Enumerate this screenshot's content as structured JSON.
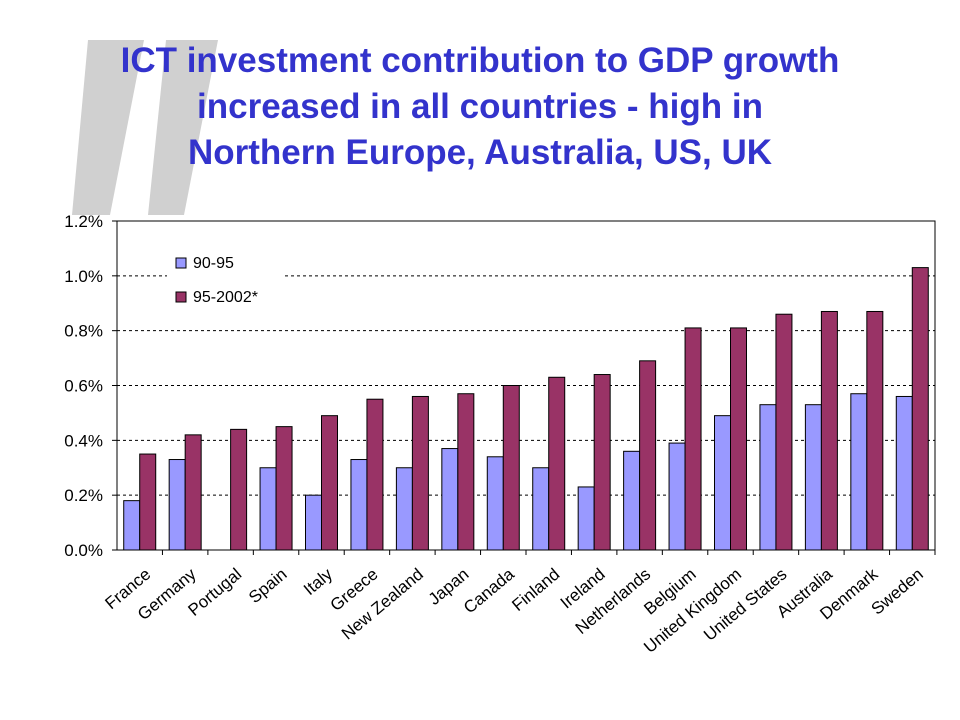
{
  "slide": {
    "title_lines": [
      "ICT investment contribution to GDP growth",
      "increased in all countries - high in",
      "Northern Europe, Australia, US, UK"
    ]
  },
  "colors": {
    "title": "#3333cc",
    "series_90_95": "#9999ff",
    "series_95_2002": "#993366",
    "quote_mark": "#d0d0d0"
  },
  "chart_data": {
    "type": "bar",
    "categories": [
      "France",
      "Germany",
      "Portugal",
      "Spain",
      "Italy",
      "Greece",
      "New Zealand",
      "Japan",
      "Canada",
      "Finland",
      "Ireland",
      "Netherlands",
      "Belgium",
      "United Kingdom",
      "United States",
      "Australia",
      "Denmark",
      "Sweden"
    ],
    "series": [
      {
        "name": "90-95",
        "values": [
          0.18,
          0.33,
          null,
          0.3,
          0.2,
          0.33,
          0.3,
          0.37,
          0.34,
          0.3,
          0.23,
          0.36,
          0.39,
          0.49,
          0.53,
          0.53,
          0.57,
          0.56
        ]
      },
      {
        "name": "95-2002*",
        "values": [
          0.35,
          0.42,
          0.44,
          0.45,
          0.49,
          0.55,
          0.56,
          0.57,
          0.6,
          0.63,
          0.64,
          0.69,
          0.81,
          0.81,
          0.86,
          0.87,
          0.87,
          1.03
        ]
      }
    ],
    "y_ticks": [
      "0.0%",
      "0.2%",
      "0.4%",
      "0.6%",
      "0.8%",
      "1.0%",
      "1.2%"
    ],
    "ylim": [
      0,
      1.2
    ],
    "grid": true,
    "legend_position": "top-left",
    "title": "",
    "xlabel": "",
    "ylabel": ""
  }
}
